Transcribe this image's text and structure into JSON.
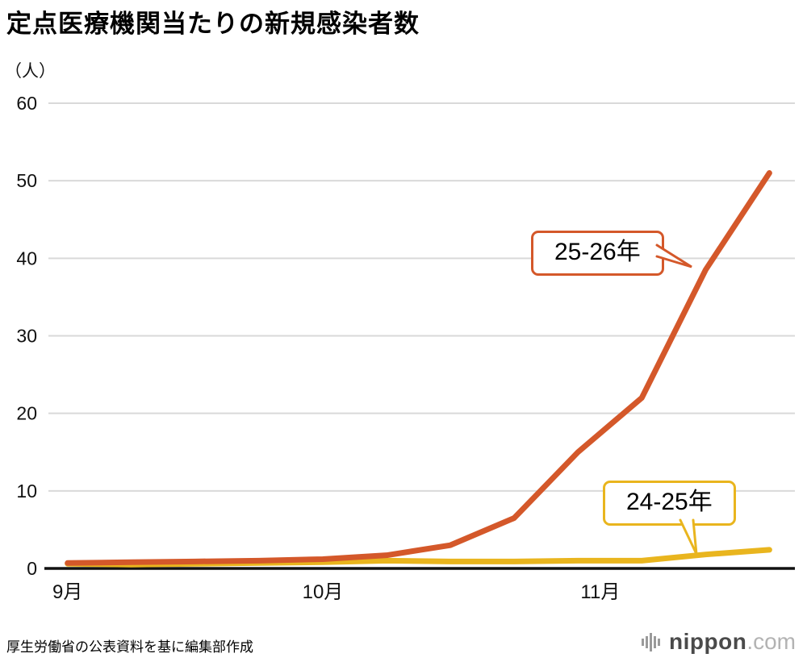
{
  "page": {
    "source_note": "厚生労働省の公表資料を基に編集部作成",
    "logo_text": "nippon",
    "logo_suffix": ".com"
  },
  "colors": {
    "series_25_26": "#d4582a",
    "series_24_25": "#e9b51e",
    "grid": "#d9d9d9",
    "axis": "#111111",
    "text": "#111111"
  },
  "chart_data": {
    "type": "line",
    "title": "定点医療機関当たりの新規感染者数",
    "ylabel": "（人）",
    "xlabel": "",
    "ylim": [
      0,
      60
    ],
    "yticks": [
      0,
      10,
      20,
      30,
      40,
      50,
      60
    ],
    "xlim": [
      -0.3,
      11.4
    ],
    "x": [
      0,
      1,
      2,
      3,
      4,
      5,
      6,
      7,
      8,
      9,
      10,
      11
    ],
    "x_ticks": [
      {
        "label": "9月",
        "pos": 0
      },
      {
        "label": "10月",
        "pos": 4
      },
      {
        "label": "11月",
        "pos": 8.35
      }
    ],
    "grid": true,
    "legend_position": "annotations-on-plot",
    "series": [
      {
        "name": "25-26年",
        "color": "#d4582a",
        "values": [
          0.7,
          0.8,
          0.9,
          1.0,
          1.2,
          1.7,
          3.0,
          6.5,
          15.0,
          22.0,
          38.5,
          51.0
        ]
      },
      {
        "name": "24-25年",
        "color": "#e9b51e",
        "values": [
          0.6,
          0.5,
          0.6,
          0.7,
          0.8,
          1.0,
          0.9,
          0.9,
          1.0,
          1.0,
          1.8,
          2.4
        ]
      }
    ]
  }
}
